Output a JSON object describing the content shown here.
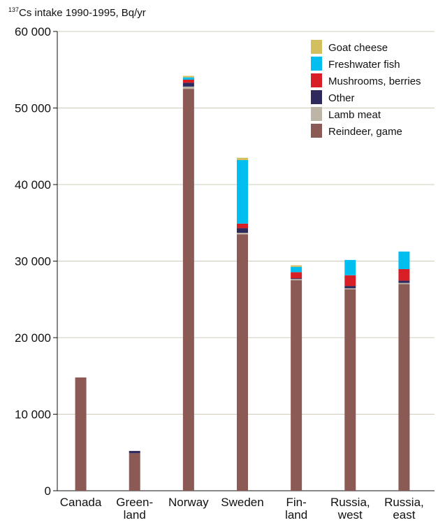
{
  "chart_data": {
    "type": "bar",
    "stacked": true,
    "title_superscript": "137",
    "title": "Cs intake 1990-1995, Bq/yr",
    "xlabel": "",
    "ylabel": "",
    "ylim": [
      0,
      60000
    ],
    "y_ticks": [
      "0",
      "10 000",
      "20 000",
      "30 000",
      "40 000",
      "50 000",
      "60 000"
    ],
    "y_tick_values": [
      0,
      10000,
      20000,
      30000,
      40000,
      50000,
      60000
    ],
    "grid": true,
    "legend_position": "top-right",
    "categories": [
      [
        "Canada"
      ],
      [
        "Green-",
        "land"
      ],
      [
        "Norway"
      ],
      [
        "Sweden"
      ],
      [
        "Fin-",
        "land"
      ],
      [
        "Russia,",
        "west"
      ],
      [
        "Russia,",
        "east"
      ]
    ],
    "series": [
      {
        "name": "Reindeer, game",
        "color": "#8c5a55",
        "values": [
          14800,
          4900,
          52500,
          33500,
          27500,
          26300,
          27000
        ]
      },
      {
        "name": "Lamb meat",
        "color": "#bdb6a6",
        "values": [
          0,
          0,
          300,
          200,
          150,
          150,
          150
        ]
      },
      {
        "name": "Other",
        "color": "#2e2a5e",
        "values": [
          0,
          300,
          500,
          600,
          100,
          300,
          300
        ]
      },
      {
        "name": "Mushrooms, berries",
        "color": "#d81f26",
        "values": [
          0,
          0,
          400,
          600,
          800,
          1400,
          1500
        ]
      },
      {
        "name": "Freshwater fish",
        "color": "#00bff0",
        "values": [
          0,
          0,
          300,
          8300,
          700,
          2000,
          2300
        ]
      },
      {
        "name": "Goat cheese",
        "color": "#d4bf5f",
        "values": [
          0,
          0,
          200,
          300,
          200,
          0,
          0
        ]
      }
    ],
    "legend_order": [
      "Goat cheese",
      "Freshwater fish",
      "Mushrooms, berries",
      "Other",
      "Lamb meat",
      "Reindeer, game"
    ]
  }
}
